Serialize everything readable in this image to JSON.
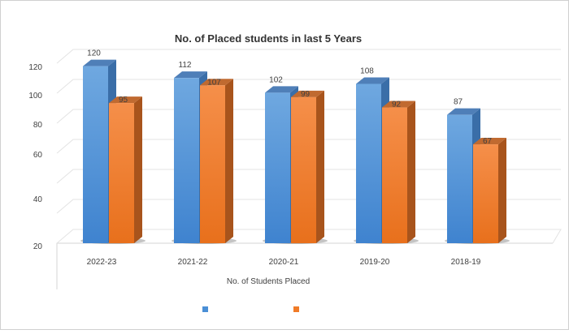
{
  "chart_data": {
    "type": "bar",
    "title": "No. of Placed students in last 5 Years",
    "xlabel": "No. of Students Placed",
    "ylabel": "",
    "categories": [
      "2022-23",
      "2021-22",
      "2020-21",
      "2019-20",
      "2018-19"
    ],
    "series": [
      {
        "name": "",
        "color": "#4a8fd6",
        "values": [
          120,
          112,
          102,
          108,
          87
        ]
      },
      {
        "name": "",
        "color": "#f07b28",
        "values": [
          95,
          107,
          99,
          92,
          67
        ]
      }
    ],
    "yticks": [
      "20",
      "40",
      "60",
      "80",
      "100",
      "120"
    ],
    "ylim": [
      0,
      140
    ],
    "grid": true,
    "legend": "bottom",
    "style": "3d-column"
  }
}
